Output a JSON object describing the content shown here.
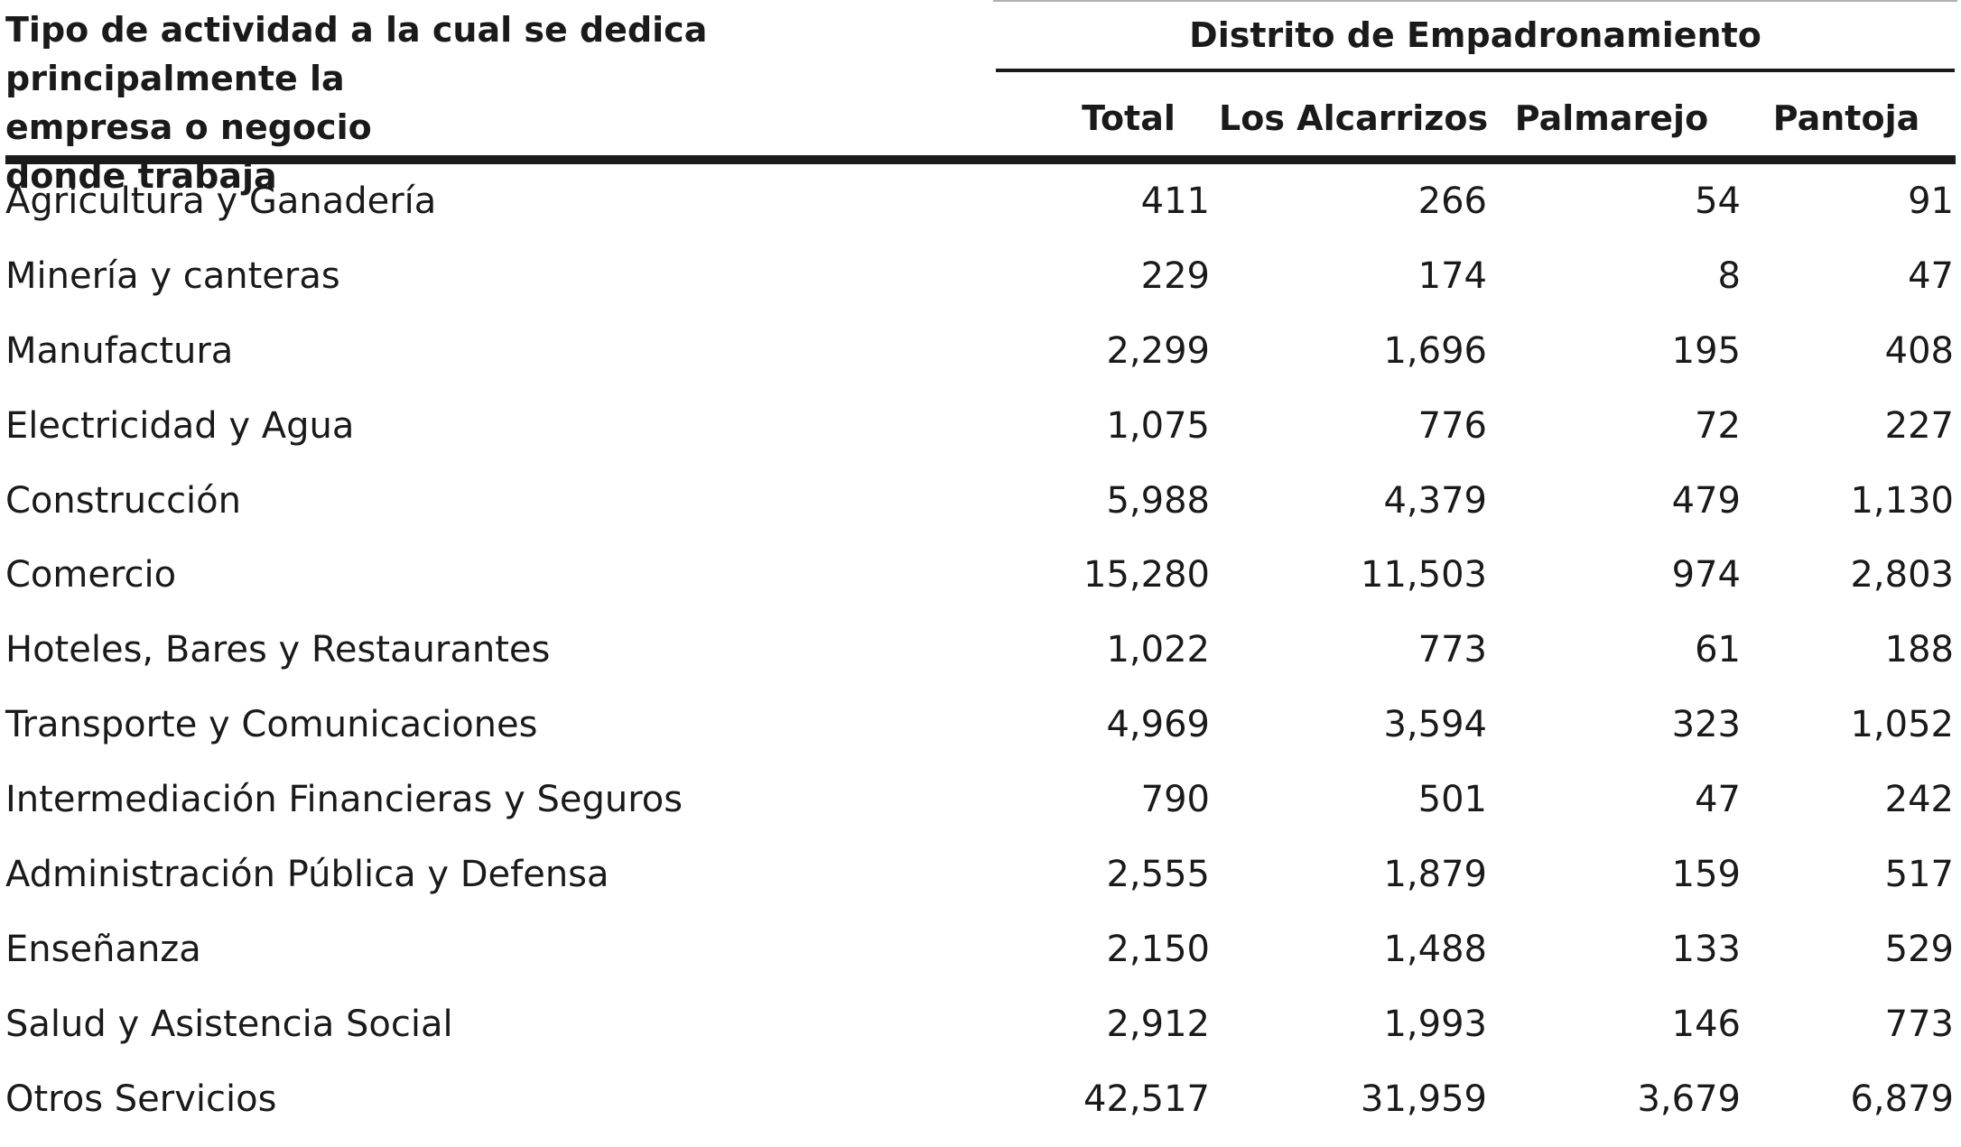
{
  "header": {
    "row_label_lines": [
      "Tipo de actividad a la cual se dedica principalmente la",
      "empresa o negocio",
      "donde trabaja"
    ],
    "district_group": "Distrito de Empadronamiento",
    "columns": [
      "Total",
      "Los Alcarrizos",
      "Palmarejo",
      "Pantoja"
    ]
  },
  "rows": [
    {
      "label": "Agricultura y Ganadería",
      "total": "411",
      "los_alcarrizos": "266",
      "palmarejo": "54",
      "pantoja": "91"
    },
    {
      "label": "Minería y canteras",
      "total": "229",
      "los_alcarrizos": "174",
      "palmarejo": "8",
      "pantoja": "47"
    },
    {
      "label": "Manufactura",
      "total": "2,299",
      "los_alcarrizos": "1,696",
      "palmarejo": "195",
      "pantoja": "408"
    },
    {
      "label": "Electricidad y Agua",
      "total": "1,075",
      "los_alcarrizos": "776",
      "palmarejo": "72",
      "pantoja": "227"
    },
    {
      "label": "Construcción",
      "total": "5,988",
      "los_alcarrizos": "4,379",
      "palmarejo": "479",
      "pantoja": "1,130"
    },
    {
      "label": "Comercio",
      "total": "15,280",
      "los_alcarrizos": "11,503",
      "palmarejo": "974",
      "pantoja": "2,803"
    },
    {
      "label": "Hoteles, Bares y Restaurantes",
      "total": "1,022",
      "los_alcarrizos": "773",
      "palmarejo": "61",
      "pantoja": "188"
    },
    {
      "label": "Transporte y Comunicaciones",
      "total": "4,969",
      "los_alcarrizos": "3,594",
      "palmarejo": "323",
      "pantoja": "1,052"
    },
    {
      "label": "Intermediación Financieras y Seguros",
      "total": "790",
      "los_alcarrizos": "501",
      "palmarejo": "47",
      "pantoja": "242"
    },
    {
      "label": "Administración Pública y Defensa",
      "total": "2,555",
      "los_alcarrizos": "1,879",
      "palmarejo": "159",
      "pantoja": "517"
    },
    {
      "label": "Enseñanza",
      "total": "2,150",
      "los_alcarrizos": "1,488",
      "palmarejo": "133",
      "pantoja": "529"
    },
    {
      "label": "Salud y Asistencia Social",
      "total": "2,912",
      "los_alcarrizos": "1,993",
      "palmarejo": "146",
      "pantoja": "773"
    },
    {
      "label": "Otros Servicios",
      "total": "42,517",
      "los_alcarrizos": "31,959",
      "palmarejo": "3,679",
      "pantoja": "6,879"
    }
  ]
}
